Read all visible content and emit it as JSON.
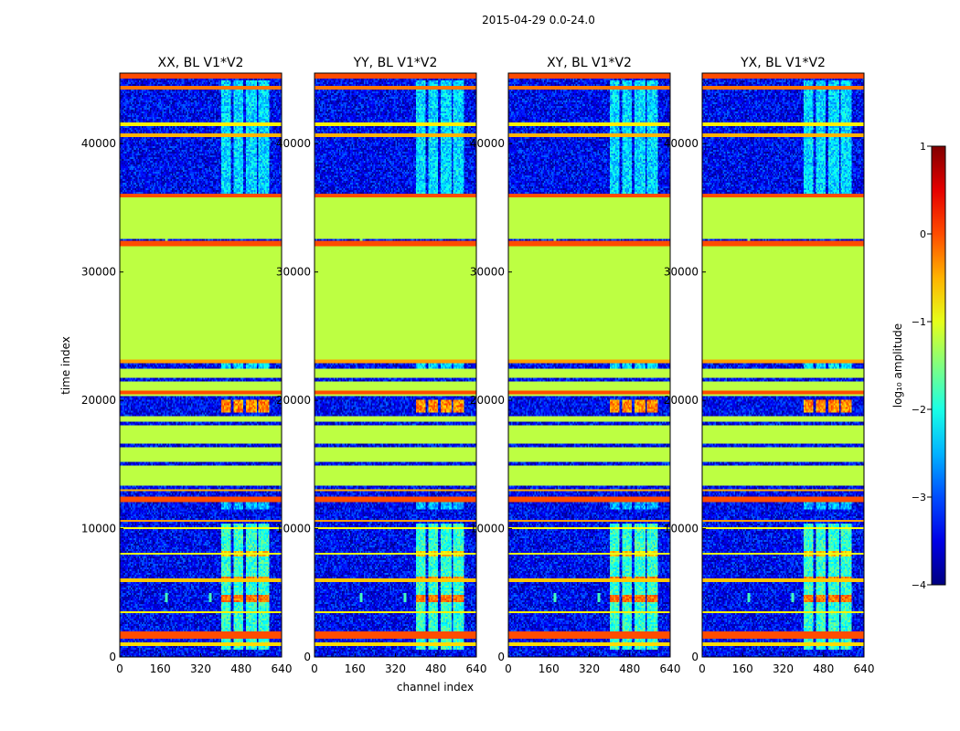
{
  "chart_data": {
    "type": "heatmap",
    "suptitle": "2015-04-29 0.0-24.0",
    "xlabel": "channel index",
    "ylabel": "time index",
    "xlim": [
      0,
      640
    ],
    "ylim": [
      0,
      45500
    ],
    "xticks": [
      0,
      160,
      320,
      480,
      640
    ],
    "yticks": [
      0,
      10000,
      20000,
      30000,
      40000
    ],
    "colorbar": {
      "label": "log₁₀ amplitude",
      "range": [
        -4,
        1
      ],
      "ticks": [
        -4,
        -3,
        -2,
        -1,
        0,
        1
      ],
      "colormap": "jet"
    },
    "background_level": -3.4,
    "panels": [
      {
        "title": "XX, BL V1*V2"
      },
      {
        "title": "YY, BL V1*V2"
      },
      {
        "title": "XY, BL V1*V2"
      },
      {
        "title": "YX, BL V1*V2"
      }
    ],
    "constant_bands": [
      {
        "t0": 23200,
        "t1": 32000,
        "level": -1.2
      },
      {
        "t0": 32500,
        "t1": 35800,
        "level": -1.2
      },
      {
        "t0": 13400,
        "t1": 14900,
        "level": -1.2
      },
      {
        "t0": 15200,
        "t1": 16400,
        "level": -1.2
      },
      {
        "t0": 16700,
        "t1": 18100,
        "level": -1.2
      },
      {
        "t0": 18400,
        "t1": 18800,
        "level": -1.2
      },
      {
        "t0": 20300,
        "t1": 20500,
        "level": -1.2
      },
      {
        "t0": 20800,
        "t1": 21500,
        "level": -1.2
      },
      {
        "t0": 21800,
        "t1": 22400,
        "level": -1.2
      }
    ],
    "lines": [
      {
        "t": 1700,
        "level": 0.0,
        "dt": 250
      },
      {
        "t": 1000,
        "level": -0.7,
        "dt": 120
      },
      {
        "t": 3500,
        "level": -0.8,
        "dt": 100
      },
      {
        "t": 6000,
        "level": -0.6,
        "dt": 100
      },
      {
        "t": 8000,
        "level": -1.0,
        "dt": 80
      },
      {
        "t": 10000,
        "level": -0.9,
        "dt": 80
      },
      {
        "t": 10600,
        "level": -0.4,
        "dt": 120
      },
      {
        "t": 12300,
        "level": 0.0,
        "dt": 200
      },
      {
        "t": 13000,
        "level": -0.5,
        "dt": 100
      },
      {
        "t": 20600,
        "level": 0.0,
        "dt": 150
      },
      {
        "t": 23000,
        "level": -0.4,
        "dt": 120
      },
      {
        "t": 32200,
        "level": 0.0,
        "dt": 150
      },
      {
        "t": 35900,
        "level": 0.0,
        "dt": 150
      },
      {
        "t": 40700,
        "level": -0.5,
        "dt": 120
      },
      {
        "t": 41500,
        "level": -0.8,
        "dt": 100
      },
      {
        "t": 44300,
        "level": -0.2,
        "dt": 150
      },
      {
        "t": 45300,
        "level": 0.0,
        "dt": 200
      }
    ],
    "channel_blocks": [
      {
        "c0": 400,
        "c1": 440
      },
      {
        "c0": 450,
        "c1": 490
      },
      {
        "c0": 500,
        "c1": 540
      },
      {
        "c0": 550,
        "c1": 590
      }
    ],
    "block_regions": [
      {
        "t0": 600,
        "t1": 10400,
        "level": -1.9
      },
      {
        "t0": 19000,
        "t1": 20000,
        "level": -0.3
      },
      {
        "t0": 36000,
        "t1": 45000,
        "level": -2.3
      },
      {
        "t0": 22500,
        "t1": 23200,
        "level": -2.3
      },
      {
        "t0": 11500,
        "t1": 12200,
        "level": -2.5
      }
    ],
    "hot_spots": [
      {
        "t0": 4200,
        "t1": 4900,
        "level": -0.2
      },
      {
        "t0": 5900,
        "t1": 6300,
        "level": -0.3
      },
      {
        "t0": 7800,
        "t1": 8300,
        "level": -0.6
      }
    ],
    "spikes": [
      {
        "c": 185,
        "t0": 4300,
        "t1": 5000,
        "level": -1.8
      },
      {
        "c": 360,
        "t0": 4300,
        "t1": 5000,
        "level": -1.8
      },
      {
        "c": 185,
        "t0": 32200,
        "t1": 32800,
        "level": -1.5
      }
    ]
  }
}
